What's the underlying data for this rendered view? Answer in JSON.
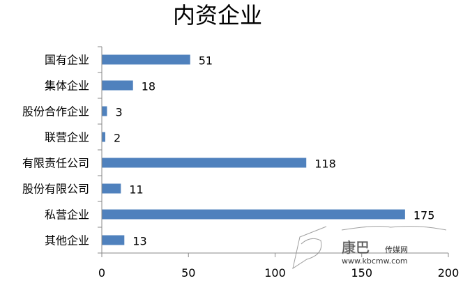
{
  "chart_data": {
    "type": "bar",
    "orientation": "horizontal",
    "title": "内资企业",
    "categories": [
      "国有企业",
      "集体企业",
      "股份合作企业",
      "联营企业",
      "有限责任公司",
      "股份有限公司",
      "私营企业",
      "其他企业"
    ],
    "values": [
      51,
      18,
      3,
      2,
      118,
      11,
      175,
      13
    ],
    "xlim": [
      0,
      200
    ],
    "xticks": [
      "0",
      "50",
      "100",
      "150",
      "200"
    ],
    "grid": false,
    "legend": "none",
    "bar_color": "#4f81bd",
    "data_labels": true
  },
  "watermark": {
    "name": "康巴传媒网",
    "url": "www.kbcmw.com"
  }
}
